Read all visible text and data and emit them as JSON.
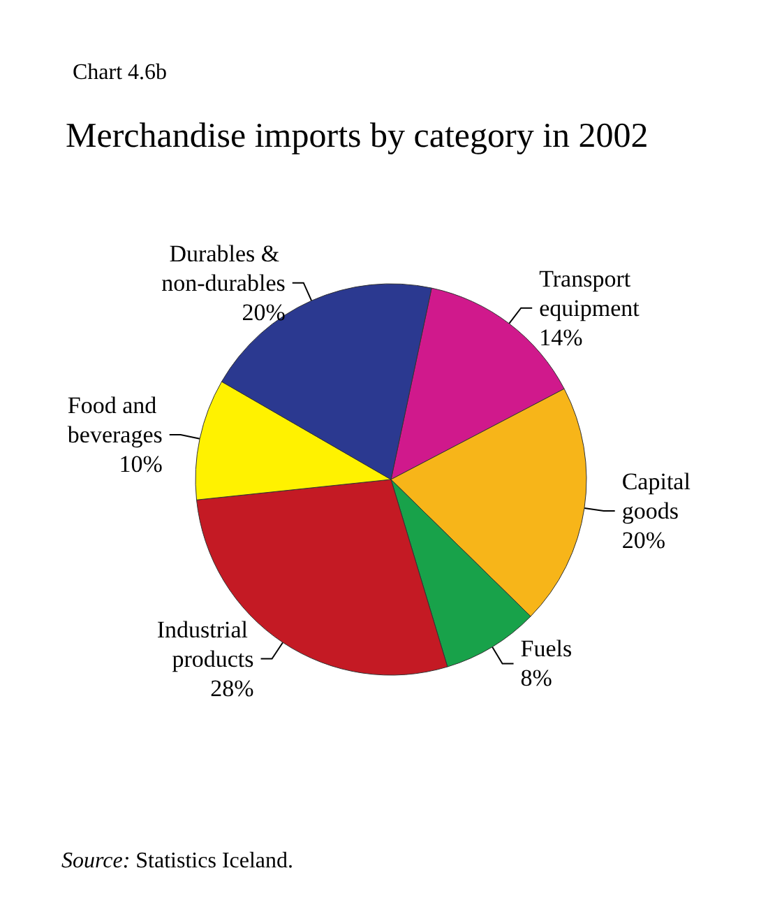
{
  "chart_data": {
    "type": "pie",
    "subtitle": "Chart 4.6b",
    "title": "Merchandise imports by category in 2002",
    "categories": [
      "Transport equipment",
      "Capital goods",
      "Fuels",
      "Industrial products",
      "Food and beverages",
      "Durables & non-durables"
    ],
    "values": [
      14,
      20,
      8,
      28,
      10,
      20
    ],
    "value_labels": [
      "14%",
      "20%",
      "8%",
      "28%",
      "10%",
      "20%"
    ],
    "colors": [
      "#d0198c",
      "#f7b519",
      "#18a24a",
      "#c41a24",
      "#fff200",
      "#2b3990"
    ],
    "legend": false,
    "annotations": [
      "Source: Statistics Iceland."
    ]
  }
}
